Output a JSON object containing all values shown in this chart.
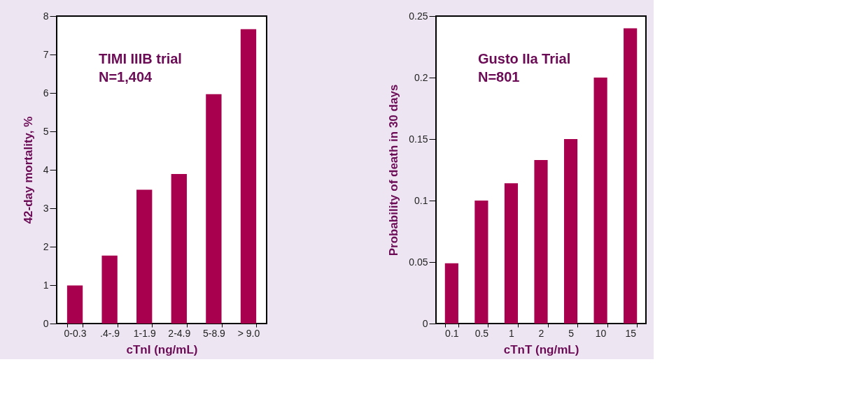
{
  "chart_data": [
    {
      "type": "bar",
      "categories": [
        "0-0.3",
        ".4-.9",
        "1-1.9",
        "2-4.9",
        "5-8.9",
        "> 9.0"
      ],
      "values": [
        0.99,
        1.77,
        3.48,
        3.89,
        5.97,
        7.66
      ],
      "color": "#a8004f",
      "xlabel": "cTnI (ng/mL)",
      "ylabel": "42-day mortality, %",
      "ylim": [
        0,
        8
      ],
      "yticks": [
        0,
        1,
        2,
        3,
        4,
        5,
        6,
        7,
        8
      ],
      "grid": false,
      "annotations": [
        "TIMI IIIB trial",
        "N=1,404"
      ]
    },
    {
      "type": "bar",
      "categories": [
        "0.1",
        "0.5",
        "1",
        "2",
        "5",
        "10",
        "15"
      ],
      "values": [
        0.049,
        0.1,
        0.114,
        0.133,
        0.15,
        0.2,
        0.24
      ],
      "color": "#a8004f",
      "xlabel": "cTnT (ng/mL)",
      "ylabel": "Probability of death in 30 days",
      "ylim": [
        0,
        0.25
      ],
      "yticks": [
        0,
        0.05,
        0.1,
        0.15,
        0.2,
        0.25
      ],
      "grid": false,
      "annotations": [
        "Gusto IIa Trial",
        "N=801"
      ]
    }
  ]
}
